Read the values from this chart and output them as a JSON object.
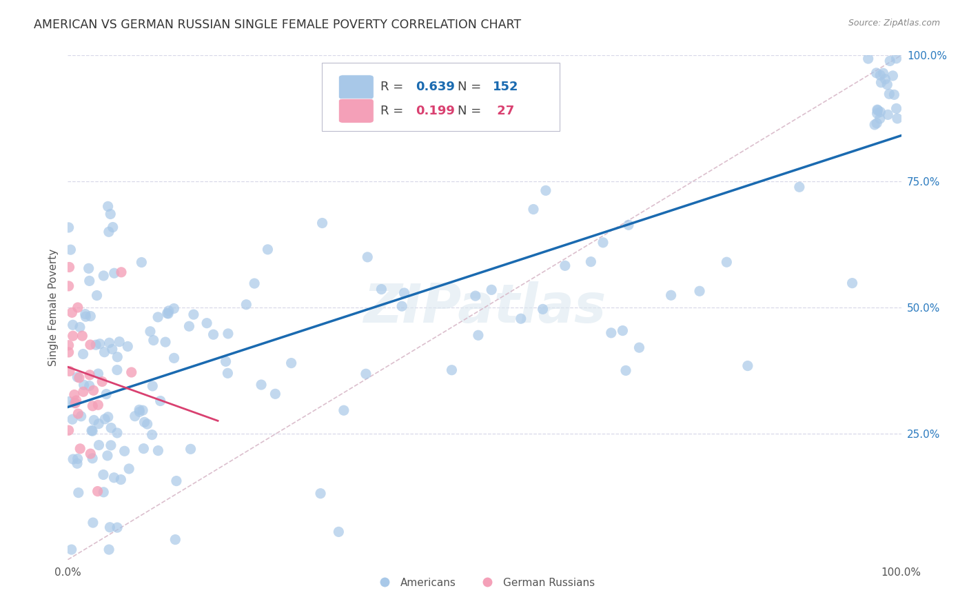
{
  "title": "AMERICAN VS GERMAN RUSSIAN SINGLE FEMALE POVERTY CORRELATION CHART",
  "source": "Source: ZipAtlas.com",
  "ylabel": "Single Female Poverty",
  "xlim": [
    0,
    1.0
  ],
  "ylim": [
    0,
    1.0
  ],
  "xtick_positions": [
    0.0,
    0.25,
    0.5,
    0.75,
    1.0
  ],
  "xtick_labels": [
    "0.0%",
    "",
    "",
    "",
    "100.0%"
  ],
  "ytick_positions": [
    0.25,
    0.5,
    0.75,
    1.0
  ],
  "ytick_labels": [
    "25.0%",
    "50.0%",
    "75.0%",
    "100.0%"
  ],
  "watermark": "ZIPatlas",
  "legend_r_blue": "0.639",
  "legend_n_blue": "152",
  "legend_r_pink": "0.199",
  "legend_n_pink": "27",
  "blue_color": "#a8c8e8",
  "pink_color": "#f4a0b8",
  "trendline_blue_color": "#1a6ab0",
  "trendline_pink_color": "#d94070",
  "diagonal_color": "#d8b8c8",
  "background_color": "#ffffff",
  "grid_color": "#d8d8e8",
  "title_color": "#333333",
  "source_color": "#888888",
  "ylabel_color": "#555555",
  "tick_color": "#555555",
  "right_tick_color": "#2a7abf",
  "legend_text_color_blue": "#1a6ab0",
  "legend_text_color_pink": "#d94070",
  "legend_n_color": "#222222"
}
